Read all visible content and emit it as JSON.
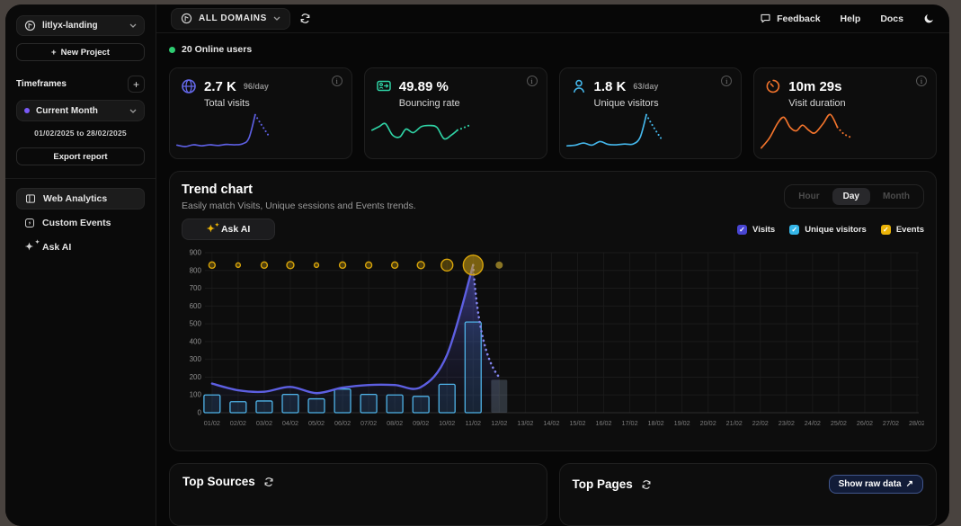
{
  "icons": {
    "plus": "+",
    "check": "✓",
    "sparkles": "✦",
    "sparkles_small": "✦",
    "external": "↗"
  },
  "sidebar": {
    "project_name": "litlyx-landing",
    "new_project": "New Project",
    "timeframes_label": "Timeframes",
    "timeframe_selected": "Current Month",
    "timeframe_range": "01/02/2025 to 28/02/2025",
    "export_label": "Export report",
    "nav": [
      {
        "label": "Web Analytics",
        "active": true
      },
      {
        "label": "Custom Events",
        "active": false
      },
      {
        "label": "Ask AI",
        "active": false
      }
    ]
  },
  "topbar": {
    "domain_selector": "ALL DOMAINS",
    "links": [
      "Feedback",
      "Help",
      "Docs"
    ]
  },
  "online_users": "20 Online users",
  "stats": [
    {
      "value": "2.7 K",
      "per_day": "96/day",
      "label": "Total visits",
      "color": "#5d5fe2",
      "spark": {
        "dotted_from": 10,
        "points": [
          [
            0,
            0.1
          ],
          [
            0.08,
            0.06
          ],
          [
            0.16,
            0.11
          ],
          [
            0.24,
            0.08
          ],
          [
            0.32,
            0.11
          ],
          [
            0.4,
            0.09
          ],
          [
            0.48,
            0.12
          ],
          [
            0.56,
            0.11
          ],
          [
            0.64,
            0.14
          ],
          [
            0.7,
            0.3
          ],
          [
            0.76,
            0.95
          ],
          [
            0.81,
            0.72
          ],
          [
            0.86,
            0.5
          ],
          [
            0.9,
            0.33
          ]
        ]
      }
    },
    {
      "value": "49.89 %",
      "per_day": "",
      "label": "Bouncing rate",
      "color": "#2fd3a5",
      "spark": {
        "dotted_from": 12,
        "points": [
          [
            0,
            0.52
          ],
          [
            0.07,
            0.62
          ],
          [
            0.13,
            0.7
          ],
          [
            0.2,
            0.38
          ],
          [
            0.27,
            0.33
          ],
          [
            0.33,
            0.55
          ],
          [
            0.4,
            0.45
          ],
          [
            0.48,
            0.62
          ],
          [
            0.56,
            0.65
          ],
          [
            0.63,
            0.6
          ],
          [
            0.7,
            0.28
          ],
          [
            0.77,
            0.38
          ],
          [
            0.83,
            0.52
          ],
          [
            0.9,
            0.6
          ],
          [
            0.95,
            0.66
          ]
        ]
      }
    },
    {
      "value": "1.8 K",
      "per_day": "63/day",
      "label": "Unique visitors",
      "color": "#45b7eb",
      "spark": {
        "dotted_from": 10,
        "points": [
          [
            0,
            0.08
          ],
          [
            0.08,
            0.1
          ],
          [
            0.16,
            0.16
          ],
          [
            0.24,
            0.1
          ],
          [
            0.32,
            0.2
          ],
          [
            0.4,
            0.12
          ],
          [
            0.48,
            0.11
          ],
          [
            0.56,
            0.13
          ],
          [
            0.64,
            0.13
          ],
          [
            0.71,
            0.32
          ],
          [
            0.77,
            0.95
          ],
          [
            0.82,
            0.7
          ],
          [
            0.87,
            0.47
          ],
          [
            0.91,
            0.3
          ]
        ]
      }
    },
    {
      "value": "10m 29s",
      "per_day": "",
      "label": "Visit duration",
      "color": "#f3742c",
      "spark": {
        "dotted_from": 11,
        "points": [
          [
            0,
            0.02
          ],
          [
            0.08,
            0.3
          ],
          [
            0.16,
            0.72
          ],
          [
            0.22,
            0.88
          ],
          [
            0.28,
            0.6
          ],
          [
            0.34,
            0.5
          ],
          [
            0.4,
            0.66
          ],
          [
            0.46,
            0.52
          ],
          [
            0.52,
            0.44
          ],
          [
            0.6,
            0.7
          ],
          [
            0.67,
            0.96
          ],
          [
            0.74,
            0.6
          ],
          [
            0.8,
            0.42
          ],
          [
            0.86,
            0.33
          ]
        ]
      }
    }
  ],
  "trend": {
    "title": "Trend chart",
    "subtitle": "Easily match Visits, Unique sessions and Events trends.",
    "ask_ai": "Ask AI",
    "granularity": [
      "Hour",
      "Day",
      "Month"
    ],
    "granularity_active": "Day",
    "legend": [
      {
        "label": "Visits",
        "color": "#4845d2",
        "checked": true
      },
      {
        "label": "Unique visitors",
        "color": "#35b6e8",
        "checked": true
      },
      {
        "label": "Events",
        "color": "#eab308",
        "checked": true
      }
    ]
  },
  "chart_data": {
    "type": "mixed (line + bar + bubble)",
    "x": [
      "01/02",
      "02/02",
      "03/02",
      "04/02",
      "05/02",
      "06/02",
      "07/02",
      "08/02",
      "09/02",
      "10/02",
      "11/02",
      "12/02",
      "13/02",
      "14/02",
      "15/02",
      "16/02",
      "17/02",
      "18/02",
      "19/02",
      "20/02",
      "21/02",
      "22/02",
      "23/02",
      "24/02",
      "25/02",
      "26/02",
      "27/02",
      "28/02"
    ],
    "ylim": [
      0,
      900
    ],
    "yticks": [
      0,
      100,
      200,
      300,
      400,
      500,
      600,
      700,
      800,
      900
    ],
    "grid": true,
    "series": [
      {
        "name": "Visits",
        "type": "line",
        "color": "#5d5fe2",
        "values": [
          164,
          126,
          118,
          145,
          110,
          141,
          156,
          156,
          144,
          325,
          830,
          200
        ],
        "dotted_from_index": 10
      },
      {
        "name": "Unique visitors",
        "type": "bar",
        "color": "#4fb3e8",
        "values": [
          100,
          62,
          66,
          103,
          78,
          133,
          103,
          100,
          92,
          160,
          510,
          185
        ],
        "faded_from_index": 11
      },
      {
        "name": "Events",
        "type": "bubble",
        "color": "#eab308",
        "bubble_y": 830,
        "bubble_radii": [
          3.5,
          2.5,
          3.5,
          4,
          2.5,
          3.5,
          3.5,
          3.5,
          4,
          6.5,
          11,
          4
        ],
        "solid_last": true
      }
    ]
  },
  "bottom": {
    "top_sources": "Top Sources",
    "top_pages": "Top Pages",
    "show_raw": "Show raw data"
  }
}
